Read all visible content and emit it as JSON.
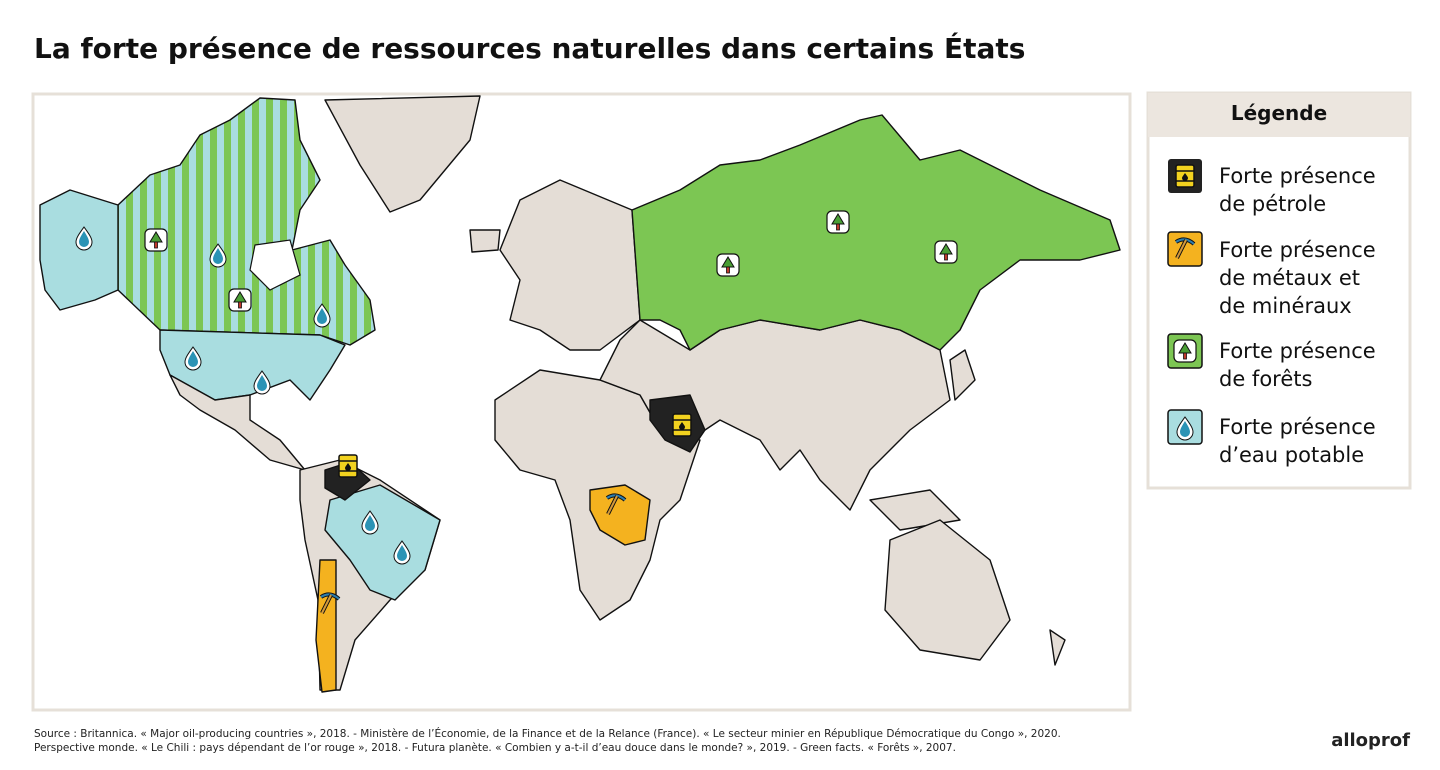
{
  "header": {
    "title": "La forte présence de ressources naturelles dans certains États"
  },
  "legend": {
    "title": "Légende",
    "items": [
      {
        "lines": [
          "Forte présence",
          "de pétrole"
        ]
      },
      {
        "lines": [
          "Forte présence",
          "de métaux et",
          "de minéraux"
        ]
      },
      {
        "lines": [
          "Forte présence",
          "de forêts"
        ]
      },
      {
        "lines": [
          "Forte présence",
          "d’eau potable"
        ]
      }
    ]
  },
  "source": {
    "lines": [
      "Source : Britannica. « Major oil-producing countries », 2018. - Ministère de l’Économie, de la Finance et de la Relance (France). « Le secteur minier en République Démocratique du Congo », 2020.",
      "Perspective monde. « Le Chili : pays dépendant de l’or rouge », 2018. - Futura planète. « Combien y a-t-il d’eau douce dans le monde? », 2019. - Green facts. « Forêts », 2007."
    ]
  },
  "logo": "alloprof"
}
